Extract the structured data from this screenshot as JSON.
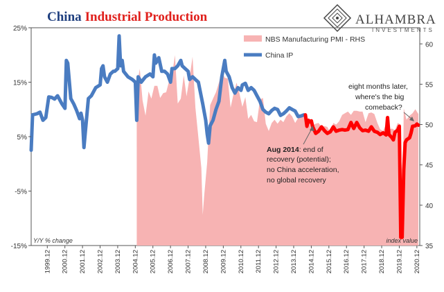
{
  "title": {
    "part1": "China",
    "part2": "Industrial Production"
  },
  "logo": {
    "name": "Alhambra",
    "sub": "INVESTMENTS"
  },
  "colors": {
    "ip": "#4a7cc1",
    "ip_recent": "#ff0000",
    "pmi": "#f7b3b3",
    "title_blue": "#1f3f7f",
    "title_red": "#e0201c"
  },
  "annotations": {
    "aug_bold": "Aug 2014",
    "aug_rest": ": end of",
    "aug_lines": [
      "recovery (potential);",
      "no China acceleration,",
      "no global recovery"
    ],
    "later_lines": [
      "eight months later,",
      "where's the big",
      "comeback?"
    ]
  },
  "chart_data": {
    "type": "area",
    "title": "China Industrial Production",
    "y_left": {
      "label": "Y/Y % change",
      "min": -15,
      "max": 25,
      "ticks": [
        "25%",
        "15%",
        "5%",
        "-5%",
        "-15%"
      ]
    },
    "y_right": {
      "label": "index value",
      "min": 35,
      "max": 62,
      "ticks": [
        "60",
        "55",
        "50",
        "45",
        "40",
        "35"
      ]
    },
    "x_ticks": [
      "1999.12",
      "2000.12",
      "2001.12",
      "2002.12",
      "2003.12",
      "2004.12",
      "2005.12",
      "2006.12",
      "2007.12",
      "2008.12",
      "2009.12",
      "2010.12",
      "2011.12",
      "2012.12",
      "2013.12",
      "2014.12",
      "2015.12",
      "2016.12",
      "2017.12",
      "2018.12",
      "2019.12",
      "2020.12"
    ],
    "x_start": 1999.0,
    "x_end": 2021.08,
    "legend": [
      "NBS Manufacturing PMI - RHS",
      "China IP"
    ],
    "series": [
      {
        "name": "China IP",
        "axis": "left",
        "points": [
          [
            1999.0,
            2.5
          ],
          [
            1999.08,
            9
          ],
          [
            1999.33,
            9.2
          ],
          [
            1999.5,
            9.5
          ],
          [
            1999.67,
            8
          ],
          [
            1999.83,
            8.5
          ],
          [
            2000.0,
            12.3
          ],
          [
            2000.17,
            12.2
          ],
          [
            2000.33,
            11.9
          ],
          [
            2000.5,
            12.5
          ],
          [
            2000.75,
            11
          ],
          [
            2000.92,
            10.2
          ],
          [
            2001.0,
            19
          ],
          [
            2001.08,
            18.5
          ],
          [
            2001.25,
            12
          ],
          [
            2001.42,
            11
          ],
          [
            2001.58,
            9.8
          ],
          [
            2001.75,
            8.3
          ],
          [
            2001.83,
            9.3
          ],
          [
            2001.92,
            8
          ],
          [
            2002.0,
            3
          ],
          [
            2002.08,
            6
          ],
          [
            2002.25,
            12
          ],
          [
            2002.42,
            12.5
          ],
          [
            2002.67,
            14
          ],
          [
            2002.92,
            14.5
          ],
          [
            2003.0,
            17.5
          ],
          [
            2003.08,
            18
          ],
          [
            2003.17,
            16
          ],
          [
            2003.33,
            15
          ],
          [
            2003.5,
            16.5
          ],
          [
            2003.67,
            17
          ],
          [
            2003.75,
            17
          ],
          [
            2003.92,
            17.5
          ],
          [
            2004.0,
            23.5
          ],
          [
            2004.08,
            18
          ],
          [
            2004.17,
            19
          ],
          [
            2004.25,
            17
          ],
          [
            2004.5,
            16
          ],
          [
            2004.75,
            15.5
          ],
          [
            2004.92,
            15
          ],
          [
            2005.0,
            8
          ],
          [
            2005.08,
            16
          ],
          [
            2005.25,
            15
          ],
          [
            2005.5,
            16
          ],
          [
            2005.75,
            16.5
          ],
          [
            2005.92,
            16
          ],
          [
            2006.0,
            20
          ],
          [
            2006.08,
            18.5
          ],
          [
            2006.25,
            19.5
          ],
          [
            2006.42,
            17
          ],
          [
            2006.58,
            17
          ],
          [
            2006.75,
            16.5
          ],
          [
            2006.92,
            15
          ],
          [
            2007.0,
            17.5
          ],
          [
            2007.17,
            17.5
          ],
          [
            2007.33,
            18
          ],
          [
            2007.5,
            19
          ],
          [
            2007.58,
            18
          ],
          [
            2007.75,
            17.5
          ],
          [
            2007.92,
            17
          ],
          [
            2008.0,
            15.5
          ],
          [
            2008.17,
            16
          ],
          [
            2008.33,
            15.5
          ],
          [
            2008.5,
            15
          ],
          [
            2008.75,
            11
          ],
          [
            2008.92,
            8
          ],
          [
            2009.0,
            5.5
          ],
          [
            2009.08,
            3.8
          ],
          [
            2009.17,
            7
          ],
          [
            2009.33,
            8
          ],
          [
            2009.5,
            10
          ],
          [
            2009.67,
            11.5
          ],
          [
            2009.83,
            16
          ],
          [
            2010.0,
            19
          ],
          [
            2010.08,
            17
          ],
          [
            2010.25,
            16
          ],
          [
            2010.42,
            14
          ],
          [
            2010.58,
            13
          ],
          [
            2010.75,
            14
          ],
          [
            2010.92,
            13.5
          ],
          [
            2011.0,
            14.5
          ],
          [
            2011.17,
            14.8
          ],
          [
            2011.33,
            13.5
          ],
          [
            2011.5,
            14
          ],
          [
            2011.67,
            13.5
          ],
          [
            2011.83,
            12.5
          ],
          [
            2012.0,
            11.5
          ],
          [
            2012.17,
            10
          ],
          [
            2012.33,
            9.5
          ],
          [
            2012.5,
            9.2
          ],
          [
            2012.67,
            9.8
          ],
          [
            2012.83,
            10.2
          ],
          [
            2013.0,
            10
          ],
          [
            2013.17,
            8.9
          ],
          [
            2013.33,
            9.2
          ],
          [
            2013.5,
            9.7
          ],
          [
            2013.67,
            10.3
          ],
          [
            2013.83,
            10
          ],
          [
            2014.0,
            9.7
          ],
          [
            2014.17,
            8.7
          ],
          [
            2014.33,
            8.8
          ],
          [
            2014.5,
            9
          ]
        ]
      },
      {
        "name": "China IP",
        "axis": "left",
        "highlight": true,
        "points": [
          [
            2014.58,
            9
          ],
          [
            2014.67,
            6.9
          ],
          [
            2014.75,
            8
          ],
          [
            2014.83,
            7.7
          ],
          [
            2014.92,
            7.9
          ],
          [
            2015.0,
            6.8
          ],
          [
            2015.17,
            5.6
          ],
          [
            2015.33,
            6
          ],
          [
            2015.5,
            6.8
          ],
          [
            2015.67,
            6.1
          ],
          [
            2015.83,
            5.6
          ],
          [
            2016.0,
            5.9
          ],
          [
            2016.17,
            6.8
          ],
          [
            2016.33,
            6
          ],
          [
            2016.5,
            6.2
          ],
          [
            2016.67,
            6.3
          ],
          [
            2016.83,
            6.2
          ],
          [
            2017.0,
            6.3
          ],
          [
            2017.17,
            7.6
          ],
          [
            2017.33,
            6.5
          ],
          [
            2017.5,
            7.6
          ],
          [
            2017.67,
            6.6
          ],
          [
            2017.83,
            6.1
          ],
          [
            2018.0,
            6.2
          ],
          [
            2018.17,
            6
          ],
          [
            2018.33,
            6.8
          ],
          [
            2018.5,
            6
          ],
          [
            2018.67,
            5.8
          ],
          [
            2018.83,
            5.4
          ],
          [
            2019.0,
            5.7
          ],
          [
            2019.17,
            5.3
          ],
          [
            2019.25,
            8.5
          ],
          [
            2019.33,
            5.4
          ],
          [
            2019.5,
            4.8
          ],
          [
            2019.58,
            4.4
          ],
          [
            2019.67,
            5.8
          ],
          [
            2019.83,
            6.2
          ],
          [
            2019.92,
            6.9
          ],
          [
            2020.0,
            -13.5
          ],
          [
            2020.08,
            -13.5
          ],
          [
            2020.17,
            -1.1
          ],
          [
            2020.25,
            3.9
          ],
          [
            2020.33,
            4.4
          ],
          [
            2020.5,
            4.8
          ],
          [
            2020.58,
            5.6
          ],
          [
            2020.67,
            6.9
          ],
          [
            2020.83,
            7
          ],
          [
            2020.92,
            7.3
          ],
          [
            2021.0,
            7.1
          ]
        ]
      },
      {
        "name": "NBS Manufacturing PMI - RHS",
        "axis": "right",
        "points": [
          [
            2005.0,
            54.7
          ],
          [
            2005.17,
            56.9
          ],
          [
            2005.33,
            53
          ],
          [
            2005.5,
            51.1
          ],
          [
            2005.67,
            54.1
          ],
          [
            2005.83,
            53.2
          ],
          [
            2006.0,
            54.8
          ],
          [
            2006.17,
            54.8
          ],
          [
            2006.33,
            53.3
          ],
          [
            2006.5,
            53.9
          ],
          [
            2006.67,
            54
          ],
          [
            2006.83,
            55.3
          ],
          [
            2007.0,
            56.1
          ],
          [
            2007.17,
            58.6
          ],
          [
            2007.33,
            52.6
          ],
          [
            2007.5,
            53.2
          ],
          [
            2007.67,
            56.1
          ],
          [
            2007.83,
            53.5
          ],
          [
            2008.0,
            55.8
          ],
          [
            2008.17,
            58.4
          ],
          [
            2008.33,
            52.1
          ],
          [
            2008.5,
            48.4
          ],
          [
            2008.67,
            44.6
          ],
          [
            2008.75,
            38.8
          ],
          [
            2008.83,
            41.2
          ],
          [
            2009.0,
            45.3
          ],
          [
            2009.17,
            52.4
          ],
          [
            2009.33,
            53.2
          ],
          [
            2009.5,
            54
          ],
          [
            2009.67,
            55.2
          ],
          [
            2009.83,
            56.6
          ],
          [
            2010.0,
            55.8
          ],
          [
            2010.17,
            55.7
          ],
          [
            2010.33,
            52.1
          ],
          [
            2010.5,
            53.8
          ],
          [
            2010.67,
            55.2
          ],
          [
            2010.83,
            53.9
          ],
          [
            2011.0,
            52.2
          ],
          [
            2011.17,
            53.4
          ],
          [
            2011.33,
            50.7
          ],
          [
            2011.5,
            51.2
          ],
          [
            2011.67,
            50.4
          ],
          [
            2011.83,
            50.3
          ],
          [
            2012.0,
            53.1
          ],
          [
            2012.17,
            53.3
          ],
          [
            2012.33,
            50.1
          ],
          [
            2012.5,
            49.2
          ],
          [
            2012.67,
            50.2
          ],
          [
            2012.83,
            50.6
          ],
          [
            2013.0,
            50.1
          ],
          [
            2013.17,
            50.6
          ],
          [
            2013.33,
            50.3
          ],
          [
            2013.5,
            51
          ],
          [
            2013.67,
            51.4
          ],
          [
            2013.83,
            51
          ],
          [
            2014.0,
            50.2
          ],
          [
            2014.17,
            50.8
          ],
          [
            2014.33,
            51
          ],
          [
            2014.5,
            51.1
          ],
          [
            2014.67,
            50.8
          ],
          [
            2014.83,
            50.1
          ],
          [
            2015.0,
            49.9
          ],
          [
            2015.17,
            50.1
          ],
          [
            2015.33,
            50.2
          ],
          [
            2015.5,
            49.7
          ],
          [
            2015.67,
            49.8
          ],
          [
            2015.83,
            49.7
          ],
          [
            2016.0,
            49
          ],
          [
            2016.17,
            50.2
          ],
          [
            2016.33,
            50
          ],
          [
            2016.5,
            50.4
          ],
          [
            2016.67,
            51.2
          ],
          [
            2016.83,
            51.4
          ],
          [
            2017.0,
            51.6
          ],
          [
            2017.17,
            51.2
          ],
          [
            2017.33,
            51.7
          ],
          [
            2017.5,
            51.7
          ],
          [
            2017.67,
            51.6
          ],
          [
            2017.83,
            51.6
          ],
          [
            2018.0,
            50.3
          ],
          [
            2018.17,
            51.4
          ],
          [
            2018.33,
            51.5
          ],
          [
            2018.5,
            51.3
          ],
          [
            2018.67,
            50.2
          ],
          [
            2018.83,
            49.4
          ],
          [
            2019.0,
            49.2
          ],
          [
            2019.17,
            50.1
          ],
          [
            2019.33,
            49.4
          ],
          [
            2019.5,
            49.5
          ],
          [
            2019.67,
            49.3
          ],
          [
            2019.83,
            50.2
          ],
          [
            2020.0,
            50
          ],
          [
            2020.08,
            35.7
          ],
          [
            2020.17,
            52
          ],
          [
            2020.33,
            50.6
          ],
          [
            2020.5,
            51.1
          ],
          [
            2020.67,
            51.4
          ],
          [
            2020.83,
            51.9
          ],
          [
            2021.0,
            51.3
          ]
        ]
      }
    ]
  }
}
